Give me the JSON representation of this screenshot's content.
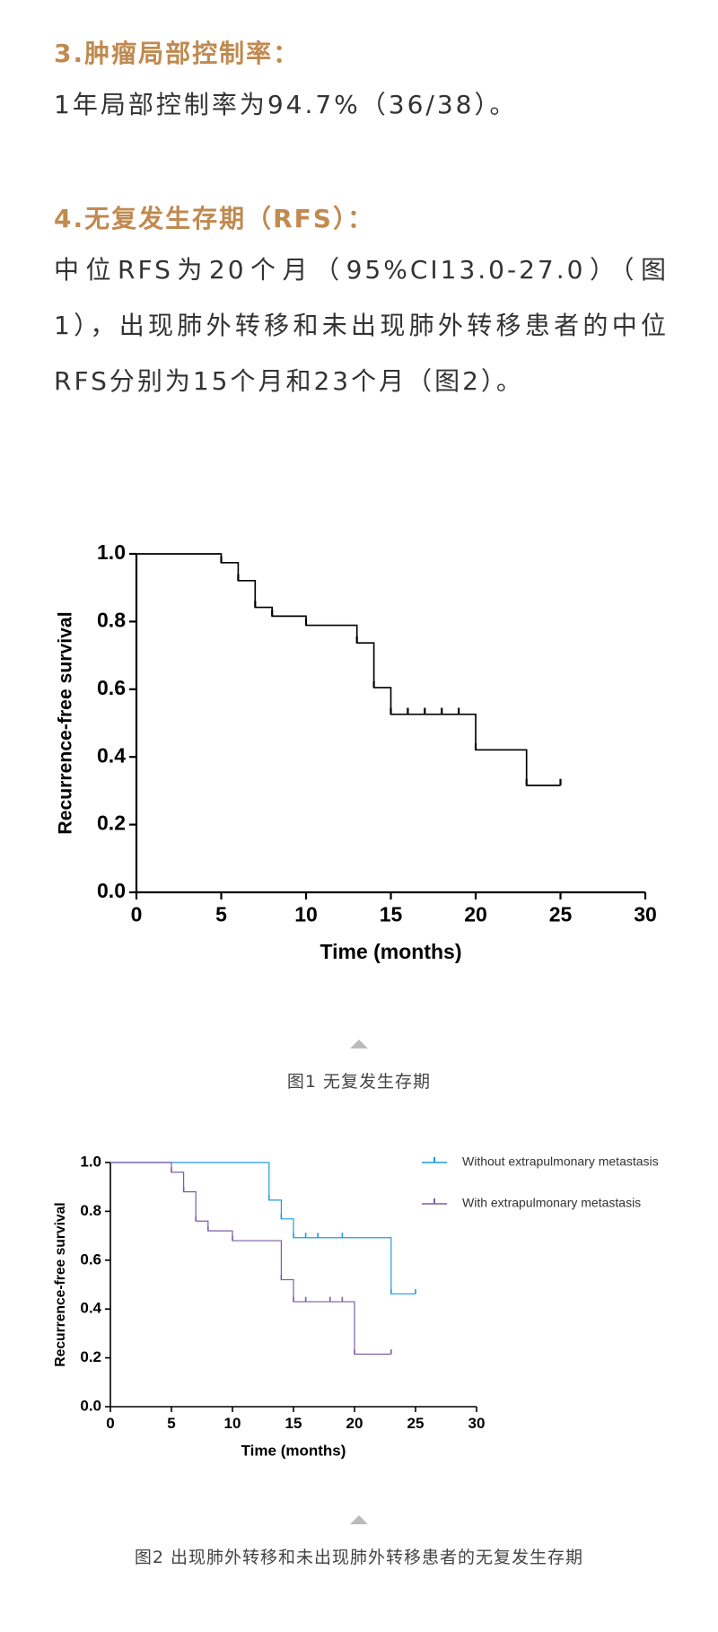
{
  "sections": [
    {
      "heading": "3.肿瘤局部控制率：",
      "body": "1年局部控制率为94.7%（36/38）。"
    },
    {
      "heading": "4.无复发生存期（RFS）：",
      "body": "中位RFS为20个月（95%CI13.0-27.0）（图1），出现肺外转移和未出现肺外转移患者的中位RFS分别为15个月和23个月（图2）。"
    }
  ],
  "chart_data": [
    {
      "type": "step",
      "xlabel": "Time (months)",
      "ylabel": "Recurrence-free survival",
      "caption": "图1 无复发生存期",
      "xlim": [
        0,
        30
      ],
      "ylim": [
        0,
        1
      ],
      "xticks": [
        0,
        5,
        10,
        15,
        20,
        25,
        30
      ],
      "yticks": [
        {
          "value": 0,
          "label": "0.0"
        },
        0.2,
        0.4,
        0.6,
        0.8,
        {
          "value": 1,
          "label": "1.0"
        }
      ],
      "series": [
        {
          "color": "#000000",
          "x": [
            0,
            5,
            6,
            7,
            8,
            10,
            13,
            14,
            15,
            20,
            23,
            25
          ],
          "values": [
            1.0,
            0.974,
            0.921,
            0.842,
            0.816,
            0.789,
            0.737,
            0.605,
            0.526,
            0.421,
            0.316,
            0.316
          ],
          "censor_x": [
            5,
            6,
            7,
            8,
            10,
            13,
            14,
            15,
            16,
            17,
            18,
            19,
            20,
            23,
            25
          ],
          "censor_values": [
            0.974,
            0.921,
            0.842,
            0.816,
            0.789,
            0.737,
            0.605,
            0.526,
            0.526,
            0.526,
            0.526,
            0.526,
            0.421,
            0.316,
            0.316
          ]
        }
      ]
    },
    {
      "type": "step",
      "xlabel": "Time (months)",
      "ylabel": "Recurrence-free survival",
      "caption": "图2 出现肺外转移和未出现肺外转移患者的无复发生存期",
      "xlim": [
        0,
        30
      ],
      "ylim": [
        0,
        1
      ],
      "xticks": [
        0,
        5,
        10,
        15,
        20,
        25,
        30
      ],
      "yticks": [
        {
          "value": 0,
          "label": "0.0"
        },
        0.2,
        0.4,
        0.6,
        0.8,
        {
          "value": 1,
          "label": "1.0"
        }
      ],
      "legend": "upper right",
      "series": [
        {
          "name": "Without extrapulmonary metastasis",
          "color": "#1e9be3",
          "x": [
            0,
            13,
            14,
            15,
            23,
            25
          ],
          "values": [
            1.0,
            0.846,
            0.769,
            0.692,
            0.462,
            0.462
          ],
          "censor_x": [
            13,
            14,
            15,
            16,
            17,
            19,
            23,
            25
          ],
          "censor_values": [
            0.846,
            0.769,
            0.692,
            0.692,
            0.692,
            0.692,
            0.462,
            0.462
          ]
        },
        {
          "name": "With extrapulmonary metastasis",
          "color": "#7b5ea7",
          "x": [
            0,
            5,
            6,
            7,
            8,
            10,
            14,
            15,
            20,
            23
          ],
          "values": [
            1.0,
            0.96,
            0.88,
            0.76,
            0.72,
            0.68,
            0.52,
            0.43,
            0.215,
            0.215
          ],
          "censor_x": [
            5,
            6,
            7,
            8,
            10,
            14,
            15,
            16,
            18,
            19,
            20,
            23
          ],
          "censor_values": [
            0.96,
            0.88,
            0.76,
            0.72,
            0.68,
            0.52,
            0.43,
            0.43,
            0.43,
            0.43,
            0.215,
            0.215
          ]
        }
      ]
    }
  ]
}
